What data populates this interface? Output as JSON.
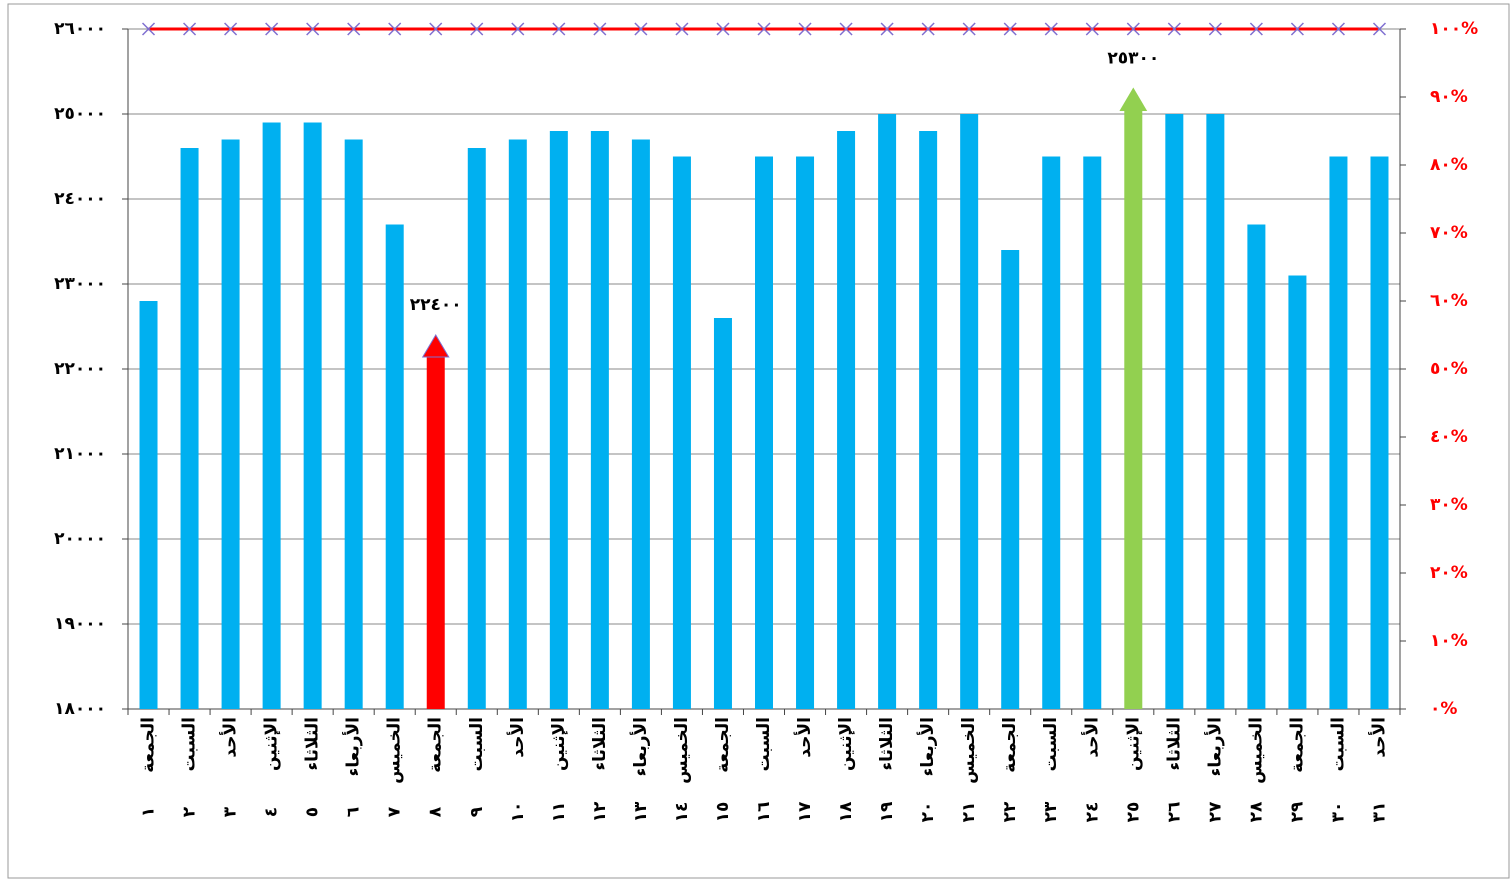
{
  "chart_data": {
    "type": "bar",
    "categories": [
      "الجمعة",
      "السبت",
      "الأحد",
      "الإثنين",
      "الثلاثاء",
      "الأربعاء",
      "الخميس",
      "الجمعة",
      "السبت",
      "الأحد",
      "الإثنين",
      "الثلاثاء",
      "الأربعاء",
      "الخميس",
      "الجمعة",
      "السبت",
      "الأحد",
      "الإثنين",
      "الثلاثاء",
      "الأربعاء",
      "الخميس",
      "الجمعة",
      "السبت",
      "الأحد",
      "الإثنين",
      "الثلاثاء",
      "الأربعاء",
      "الخميس",
      "الجمعة",
      "السبت",
      "الأحد"
    ],
    "category_numbers": [
      "١",
      "٢",
      "٣",
      "٤",
      "٥",
      "٦",
      "٧",
      "٨",
      "٩",
      "١٠",
      "١١",
      "١٢",
      "١٣",
      "١٤",
      "١٥",
      "١٦",
      "١٧",
      "١٨",
      "١٩",
      "٢٠",
      "٢١",
      "٢٢",
      "٢٣",
      "٢٤",
      "٢٥",
      "٢٦",
      "٢٧",
      "٢٨",
      "٢٩",
      "٣٠",
      "٣١"
    ],
    "series": [
      {
        "type": "bar",
        "values": [
          22800,
          24600,
          24700,
          24900,
          24900,
          24700,
          23700,
          22400,
          24600,
          24700,
          24800,
          24800,
          24700,
          24500,
          22600,
          24500,
          24500,
          24800,
          25000,
          24800,
          25000,
          23400,
          24500,
          24500,
          25300,
          25000,
          25000,
          23700,
          23100,
          24500,
          24500
        ],
        "value_labels": [
          null,
          null,
          null,
          null,
          null,
          null,
          null,
          "٢٢٤٠٠",
          null,
          null,
          null,
          null,
          null,
          null,
          null,
          null,
          null,
          null,
          null,
          null,
          null,
          null,
          null,
          null,
          "٢٥٣٠٠",
          null,
          null,
          null,
          null,
          null,
          null
        ],
        "colors": [
          "#00b0f0",
          "#00b0f0",
          "#00b0f0",
          "#00b0f0",
          "#00b0f0",
          "#00b0f0",
          "#00b0f0",
          "#ff0000",
          "#00b0f0",
          "#00b0f0",
          "#00b0f0",
          "#00b0f0",
          "#00b0f0",
          "#00b0f0",
          "#00b0f0",
          "#00b0f0",
          "#00b0f0",
          "#00b0f0",
          "#00b0f0",
          "#00b0f0",
          "#00b0f0",
          "#00b0f0",
          "#00b0f0",
          "#00b0f0",
          "#92d050",
          "#00b0f0",
          "#00b0f0",
          "#00b0f0",
          "#00b0f0",
          "#00b0f0",
          "#00b0f0"
        ]
      },
      {
        "type": "line",
        "axis": "y2",
        "color": "#ff0000",
        "marker_color": "#7f6fd0",
        "values": [
          100,
          100,
          100,
          100,
          100,
          100,
          100,
          100,
          100,
          100,
          100,
          100,
          100,
          100,
          100,
          100,
          100,
          100,
          100,
          100,
          100,
          100,
          100,
          100,
          100,
          100,
          100,
          100,
          100,
          100,
          100
        ]
      }
    ],
    "ylim": [
      18000,
      26000
    ],
    "yticks": [
      {
        "value": 18000,
        "label": "١٨٠٠٠"
      },
      {
        "value": 19000,
        "label": "١٩٠٠٠"
      },
      {
        "value": 20000,
        "label": "٢٠٠٠٠"
      },
      {
        "value": 21000,
        "label": "٢١٠٠٠"
      },
      {
        "value": 22000,
        "label": "٢٢٠٠٠"
      },
      {
        "value": 23000,
        "label": "٢٣٠٠٠"
      },
      {
        "value": 24000,
        "label": "٢٤٠٠٠"
      },
      {
        "value": 25000,
        "label": "٢٥٠٠٠"
      },
      {
        "value": 26000,
        "label": "٢٦٠٠٠"
      }
    ],
    "y2lim": [
      0,
      100
    ],
    "y2ticks": [
      {
        "value": 0,
        "label": "٠%"
      },
      {
        "value": 10,
        "label": "١٠%"
      },
      {
        "value": 20,
        "label": "٢٠%"
      },
      {
        "value": 30,
        "label": "٣٠%"
      },
      {
        "value": 40,
        "label": "٤٠%"
      },
      {
        "value": 50,
        "label": "٥٠%"
      },
      {
        "value": 60,
        "label": "٦٠%"
      },
      {
        "value": 70,
        "label": "٧٠%"
      },
      {
        "value": 80,
        "label": "٨٠%"
      },
      {
        "value": 90,
        "label": "٩٠%"
      },
      {
        "value": 100,
        "label": "١٠٠%"
      }
    ],
    "grid": true
  }
}
